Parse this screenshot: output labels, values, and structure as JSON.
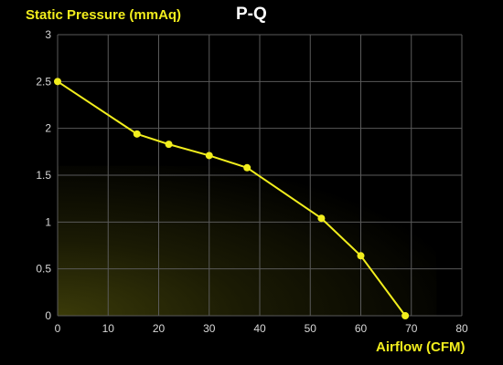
{
  "chart_data": {
    "type": "line",
    "title": "P-Q",
    "xlabel": "Airflow (CFM)",
    "ylabel": "Static Pressure (mmAq)",
    "xlim": [
      0,
      80
    ],
    "ylim": [
      0,
      3
    ],
    "xticks": [
      "0",
      "10",
      "20",
      "30",
      "40",
      "50",
      "60",
      "70",
      "80"
    ],
    "yticks": [
      "0",
      "0.5",
      "1",
      "1.5",
      "2",
      "2.5",
      "3"
    ],
    "grid": true,
    "series": [
      {
        "x": [
          0,
          15.7,
          22,
          30,
          37.5,
          52.2,
          60,
          68.8
        ],
        "y": [
          2.5,
          1.94,
          1.83,
          1.71,
          1.58,
          1.04,
          0.64,
          0
        ]
      }
    ],
    "colors": {
      "line": "#f2ee1d",
      "label": "#f2ee1d",
      "title": "#ffffff",
      "grid": "#5a5a5a",
      "tick": "#d8d8d8",
      "background": "#000000",
      "glow": "#6a6a10"
    }
  }
}
